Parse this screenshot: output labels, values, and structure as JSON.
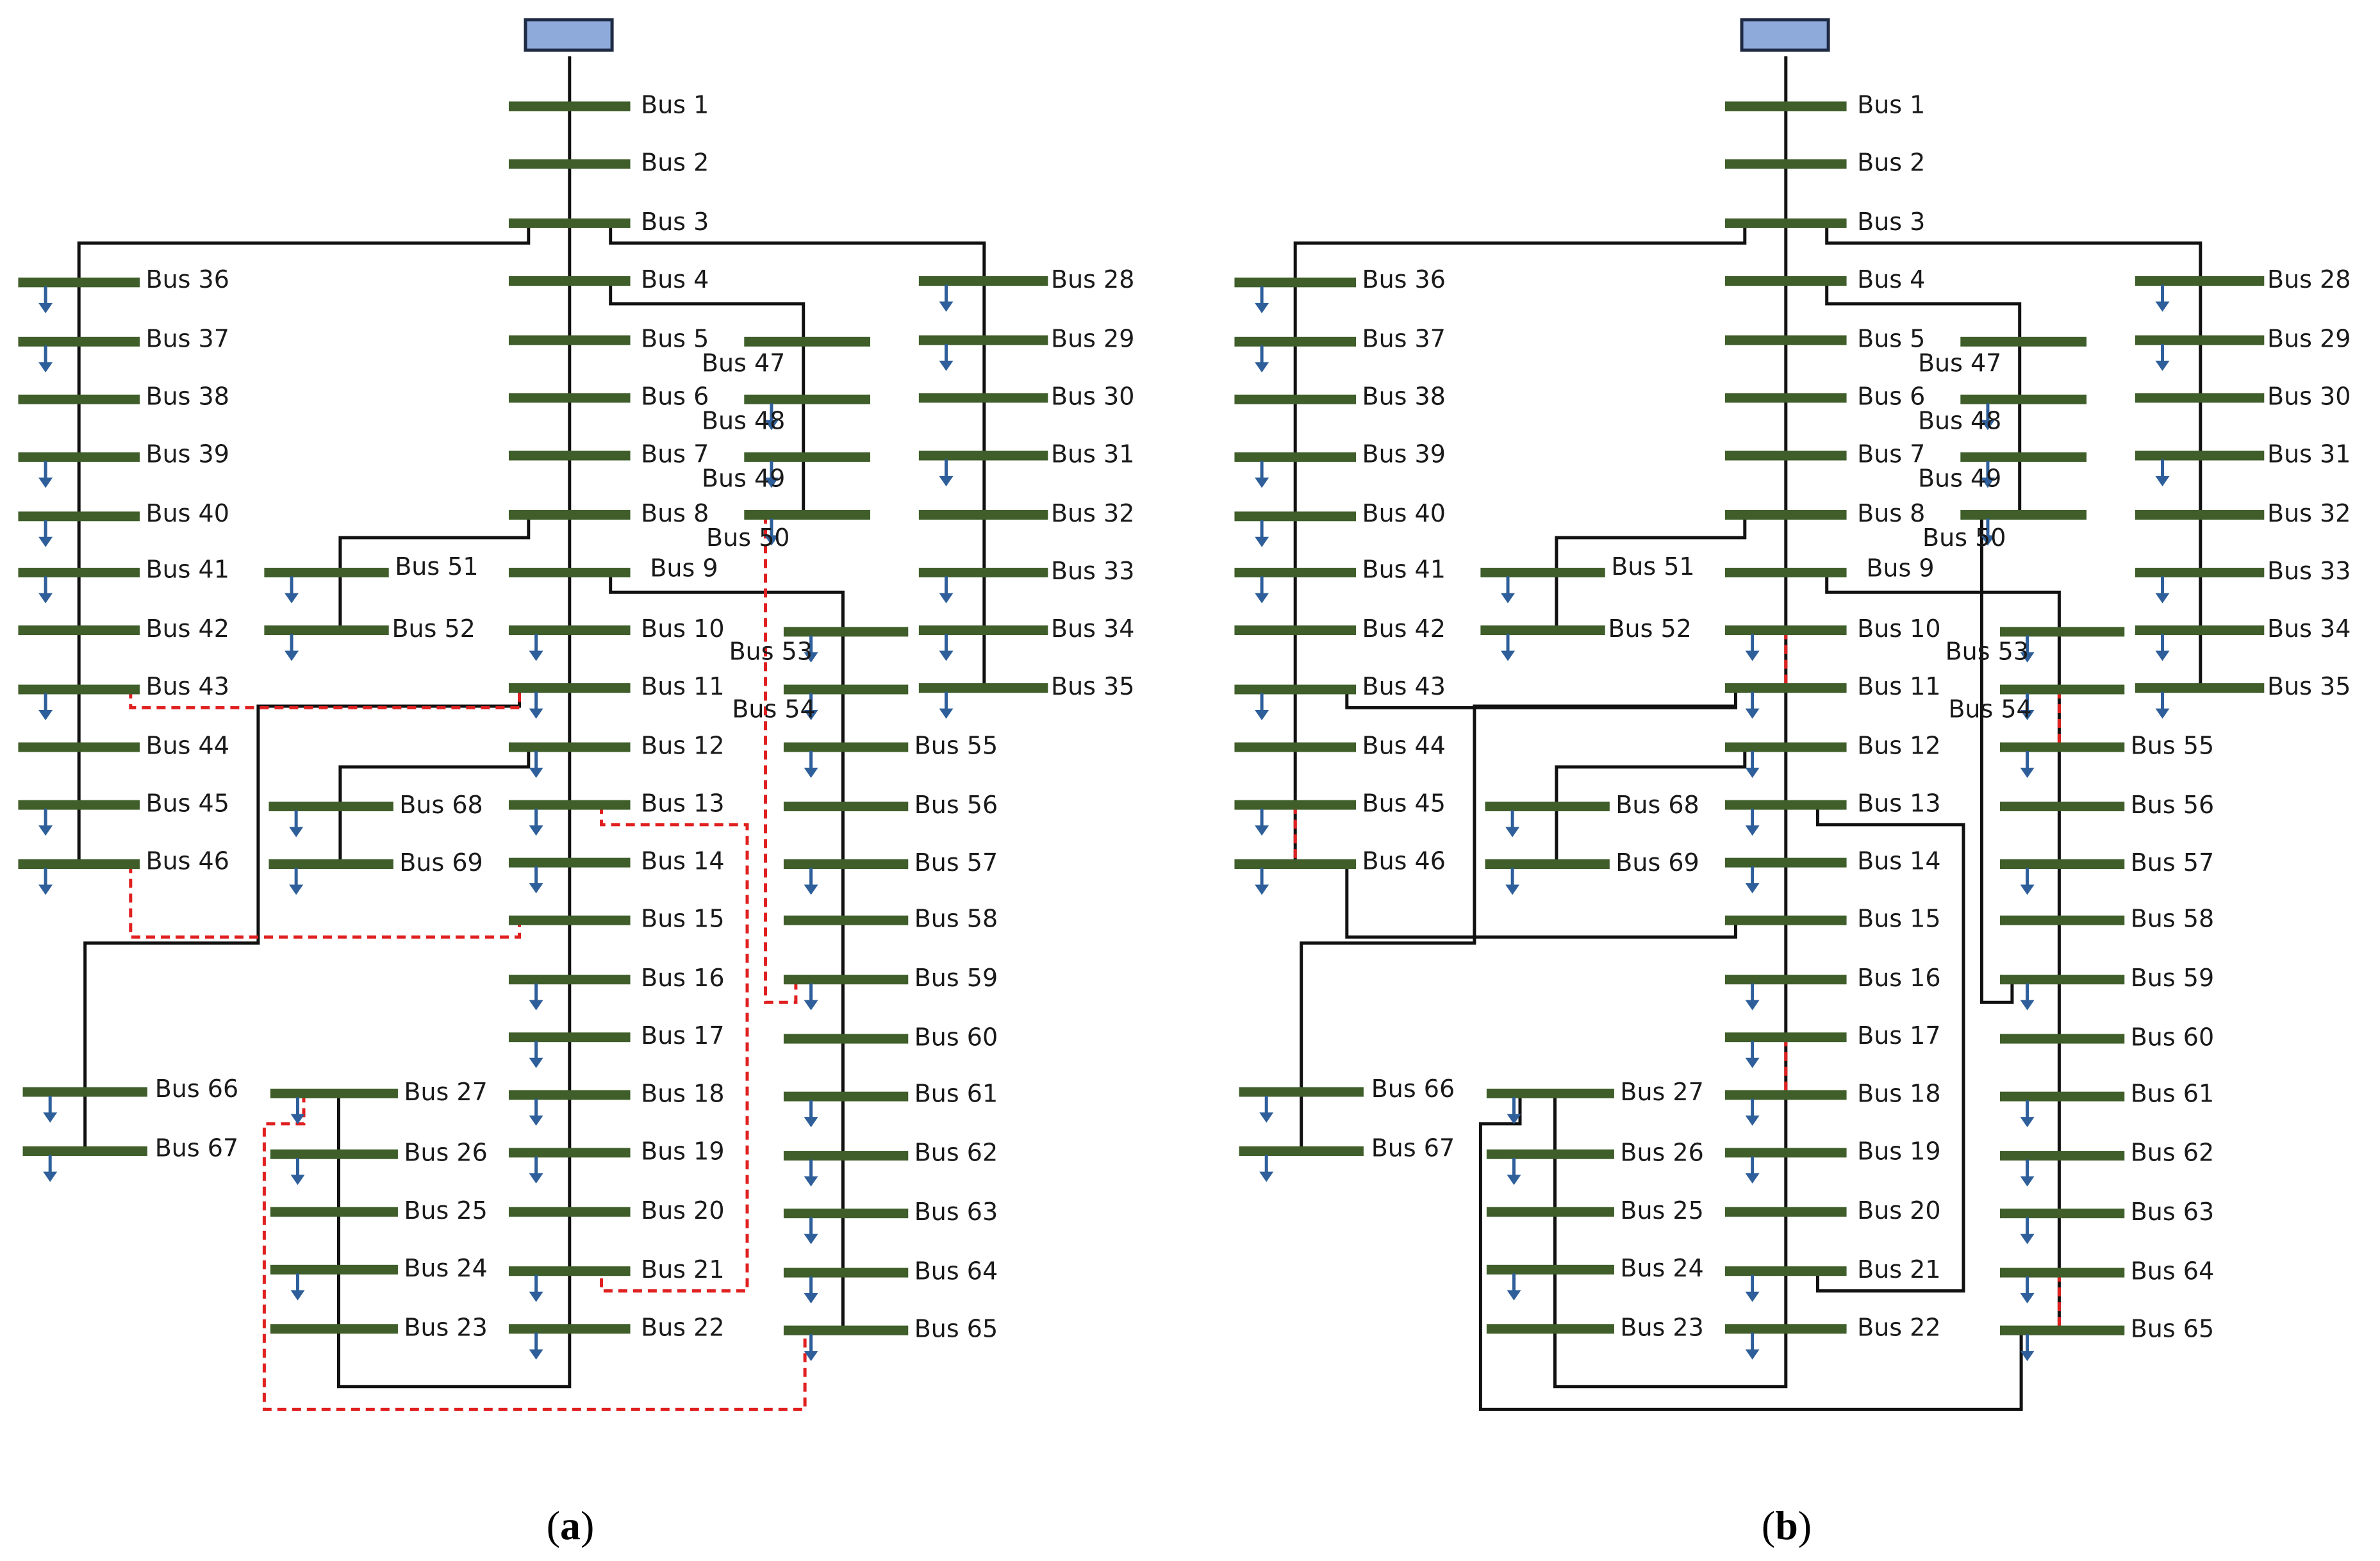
{
  "figure": {
    "panels": [
      {
        "id": "a",
        "caption_open": "(",
        "caption_letter": "a",
        "caption_close": ")",
        "open_switches": [
          "Bus 11–Bus 43",
          "Bus 46–Bus 15",
          "Bus 13–Bus 21",
          "Bus 50–Bus 59",
          "Bus 27–Bus 65"
        ]
      },
      {
        "id": "b",
        "caption_open": "(",
        "caption_letter": "b",
        "caption_close": ")",
        "open_switches": [
          "Bus 10–Bus 11",
          "Bus 45–Bus 46",
          "Bus 17–Bus 18",
          "Bus 54–Bus 55",
          "Bus 64–Bus 65"
        ]
      }
    ],
    "buses": [
      "Bus 1",
      "Bus 2",
      "Bus 3",
      "Bus 4",
      "Bus 5",
      "Bus 6",
      "Bus 7",
      "Bus 8",
      "Bus 9",
      "Bus 10",
      "Bus 11",
      "Bus 12",
      "Bus 13",
      "Bus 14",
      "Bus 15",
      "Bus 16",
      "Bus 17",
      "Bus 18",
      "Bus 19",
      "Bus 20",
      "Bus 21",
      "Bus 22",
      "Bus 23",
      "Bus 24",
      "Bus 25",
      "Bus 26",
      "Bus 27",
      "Bus 28",
      "Bus 29",
      "Bus 30",
      "Bus 31",
      "Bus 32",
      "Bus 33",
      "Bus 34",
      "Bus 35",
      "Bus 36",
      "Bus 37",
      "Bus 38",
      "Bus 39",
      "Bus 40",
      "Bus 41",
      "Bus 42",
      "Bus 43",
      "Bus 44",
      "Bus 45",
      "Bus 46",
      "Bus 47",
      "Bus 48",
      "Bus 49",
      "Bus 50",
      "Bus 51",
      "Bus 52",
      "Bus 53",
      "Bus 54",
      "Bus 55",
      "Bus 56",
      "Bus 57",
      "Bus 58",
      "Bus 59",
      "Bus 60",
      "Bus 61",
      "Bus 62",
      "Bus 63",
      "Bus 64",
      "Bus 65",
      "Bus 66",
      "Bus 67",
      "Bus 68",
      "Bus 69"
    ],
    "colors": {
      "bus_bar": "#3f5e2a",
      "source": "#8eaadb",
      "source_stroke": "#1f2a44",
      "load_arrow": "#2e5f9a",
      "line": "#111111",
      "open_switch": "#e02020",
      "label": "#1a1a1a"
    }
  }
}
